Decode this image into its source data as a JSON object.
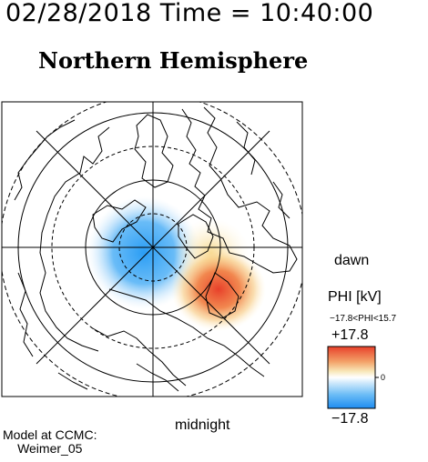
{
  "header": {
    "datetime": "02/28/2018 Time = 10:40:00"
  },
  "title": "Northern Hemisphere",
  "labels": {
    "dawn": "dawn",
    "midnight": "midnight"
  },
  "model": {
    "line1": "Model at CCMC:",
    "line2": "Weimer_05"
  },
  "colorbar": {
    "title": "PHI [kV]",
    "range_text": "−17.8<PHI<15.7",
    "max_label": "+17.8",
    "min_label": "−17.8",
    "zero_label": "0",
    "max": 17.8,
    "min": -17.8,
    "data_min": -17.8,
    "data_max": 15.7
  },
  "colors": {
    "negative": "#2a9df4",
    "positive": "#e8402a",
    "neutral": "#ffffff"
  }
}
